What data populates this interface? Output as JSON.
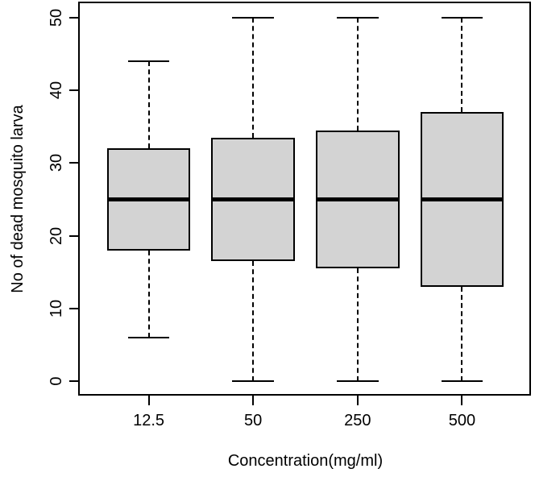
{
  "figure": {
    "background": "#ffffff"
  },
  "chart_data": {
    "type": "boxplot",
    "title": "",
    "xlabel": "Concentration(mg/ml)",
    "ylabel": "No of dead mosquito larva",
    "categories": [
      "12.5",
      "50",
      "250",
      "500"
    ],
    "y_ticks": [
      0,
      10,
      20,
      30,
      40,
      50
    ],
    "ylim": [
      -2,
      52
    ],
    "grid": false,
    "legend": "none",
    "box_fill_color": "#d3d3d3",
    "line_color": "#000000",
    "series": [
      {
        "category": "12.5",
        "whisker_low": 6,
        "q1": 18,
        "median": 25,
        "q3": 32,
        "whisker_high": 44,
        "outliers": []
      },
      {
        "category": "50",
        "whisker_low": 0,
        "q1": 16.5,
        "median": 25,
        "q3": 33.5,
        "whisker_high": 50,
        "outliers": []
      },
      {
        "category": "250",
        "whisker_low": 0,
        "q1": 15.5,
        "median": 25,
        "q3": 34.5,
        "whisker_high": 50,
        "outliers": []
      },
      {
        "category": "500",
        "whisker_low": 0,
        "q1": 13,
        "median": 25,
        "q3": 37,
        "whisker_high": 50,
        "outliers": []
      }
    ]
  }
}
